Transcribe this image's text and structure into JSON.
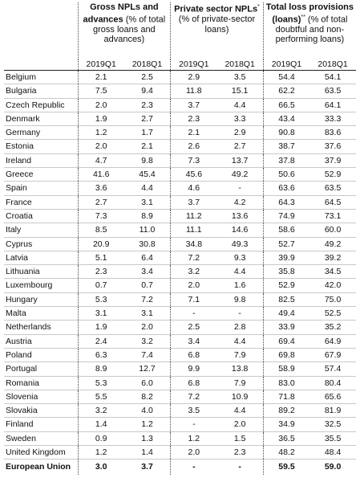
{
  "table": {
    "groups": [
      {
        "bold": "Gross NPLs and advances",
        "sup": "",
        "rest": " (% of total gross loans and advances)"
      },
      {
        "bold": "Private sector NPLs",
        "sup": "*",
        "rest": " (% of private-sector loans)"
      },
      {
        "bold": "Total loss provisions (loans)",
        "sup": "**",
        "rest": " (% of total doubtful and non-performing loans)"
      }
    ],
    "periods": [
      "2019Q1",
      "2018Q1",
      "2019Q1",
      "2018Q1",
      "2019Q1",
      "2018Q1"
    ],
    "rows": [
      {
        "country": "Belgium",
        "values": [
          "2.1",
          "2.5",
          "2.9",
          "3.5",
          "54.4",
          "54.1"
        ]
      },
      {
        "country": "Bulgaria",
        "values": [
          "7.5",
          "9.4",
          "11.8",
          "15.1",
          "62.2",
          "63.5"
        ]
      },
      {
        "country": "Czech Republic",
        "values": [
          "2.0",
          "2.3",
          "3.7",
          "4.4",
          "66.5",
          "64.1"
        ]
      },
      {
        "country": "Denmark",
        "values": [
          "1.9",
          "2.7",
          "2.3",
          "3.3",
          "43.4",
          "33.3"
        ]
      },
      {
        "country": "Germany",
        "values": [
          "1.2",
          "1.7",
          "2.1",
          "2.9",
          "90.8",
          "83.6"
        ]
      },
      {
        "country": "Estonia",
        "values": [
          "2.0",
          "2.1",
          "2.6",
          "2.7",
          "38.7",
          "37.6"
        ]
      },
      {
        "country": "Ireland",
        "values": [
          "4.7",
          "9.8",
          "7.3",
          "13.7",
          "37.8",
          "37.9"
        ]
      },
      {
        "country": "Greece",
        "values": [
          "41.6",
          "45.4",
          "45.6",
          "49.2",
          "50.6",
          "52.9"
        ]
      },
      {
        "country": "Spain",
        "values": [
          "3.6",
          "4.4",
          "4.6",
          "-",
          "63.6",
          "63.5"
        ]
      },
      {
        "country": "France",
        "values": [
          "2.7",
          "3.1",
          "3.7",
          "4.2",
          "64.3",
          "64.5"
        ]
      },
      {
        "country": "Croatia",
        "values": [
          "7.3",
          "8.9",
          "11.2",
          "13.6",
          "74.9",
          "73.1"
        ]
      },
      {
        "country": "Italy",
        "values": [
          "8.5",
          "11.0",
          "11.1",
          "14.6",
          "58.6",
          "60.0"
        ]
      },
      {
        "country": "Cyprus",
        "values": [
          "20.9",
          "30.8",
          "34.8",
          "49.3",
          "52.7",
          "49.2"
        ]
      },
      {
        "country": "Latvia",
        "values": [
          "5.1",
          "6.4",
          "7.2",
          "9.3",
          "39.9",
          "39.2"
        ]
      },
      {
        "country": "Lithuania",
        "values": [
          "2.3",
          "3.4",
          "3.2",
          "4.4",
          "35.8",
          "34.5"
        ]
      },
      {
        "country": "Luxembourg",
        "values": [
          "0.7",
          "0.7",
          "2.0",
          "1.6",
          "52.9",
          "42.0"
        ]
      },
      {
        "country": "Hungary",
        "values": [
          "5.3",
          "7.2",
          "7.1",
          "9.8",
          "82.5",
          "75.0"
        ]
      },
      {
        "country": "Malta",
        "values": [
          "3.1",
          "3.1",
          "-",
          "-",
          "49.4",
          "52.5"
        ]
      },
      {
        "country": "Netherlands",
        "values": [
          "1.9",
          "2.0",
          "2.5",
          "2.8",
          "33.9",
          "35.2"
        ]
      },
      {
        "country": "Austria",
        "values": [
          "2.4",
          "3.2",
          "3.4",
          "4.4",
          "69.4",
          "64.9"
        ]
      },
      {
        "country": "Poland",
        "values": [
          "6.3",
          "7.4",
          "6.8",
          "7.9",
          "69.8",
          "67.9"
        ]
      },
      {
        "country": "Portugal",
        "values": [
          "8.9",
          "12.7",
          "9.9",
          "13.8",
          "58.9",
          "57.4"
        ]
      },
      {
        "country": "Romania",
        "values": [
          "5.3",
          "6.0",
          "6.8",
          "7.9",
          "83.0",
          "80.4"
        ]
      },
      {
        "country": "Slovenia",
        "values": [
          "5.5",
          "8.2",
          "7.2",
          "10.9",
          "71.8",
          "65.6"
        ]
      },
      {
        "country": "Slovakia",
        "values": [
          "3.2",
          "4.0",
          "3.5",
          "4.4",
          "89.2",
          "81.9"
        ]
      },
      {
        "country": "Finland",
        "values": [
          "1.4",
          "1.2",
          "-",
          "2.0",
          "34.9",
          "32.5"
        ]
      },
      {
        "country": "Sweden",
        "values": [
          "0.9",
          "1.3",
          "1.2",
          "1.5",
          "36.5",
          "35.5"
        ]
      },
      {
        "country": "United Kingdom",
        "values": [
          "1.2",
          "1.4",
          "2.0",
          "2.3",
          "48.2",
          "48.4"
        ]
      }
    ],
    "total": {
      "country": "European Union",
      "values": [
        "3.0",
        "3.7",
        "-",
        "-",
        "59.5",
        "59.0"
      ]
    }
  }
}
